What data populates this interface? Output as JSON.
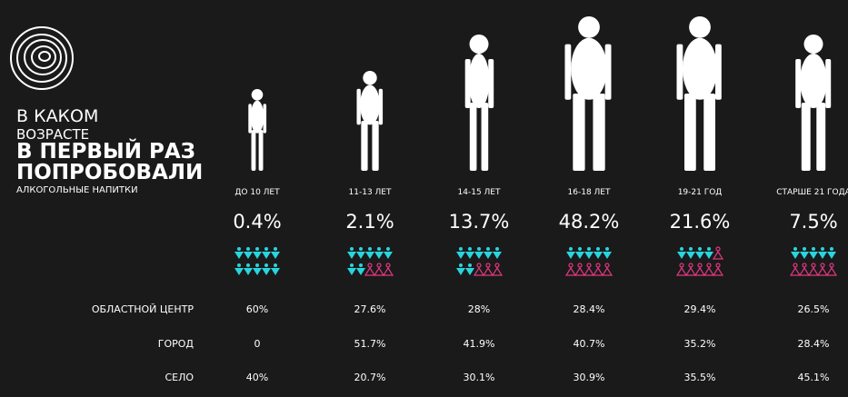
{
  "title_lines": [
    "В КАКОМ",
    "ВОЗРАСТЕ",
    "В ПЕРВЫЙ РАЗ",
    "ПОПРОБОВАЛИ",
    "АЛКОГОЛЬНЫЕ НАПИТКИ"
  ],
  "groups": [
    {
      "label": "ДО 10 ЛЕТ",
      "share": "0.4%",
      "icons": {
        "male": 10,
        "female": 0
      }
    },
    {
      "label": "11-13 ЛЕТ",
      "share": "2.1%",
      "icons": {
        "male": 7,
        "female": 3
      }
    },
    {
      "label": "14-15 ЛЕТ",
      "share": "13.7%",
      "icons": {
        "male": 7,
        "female": 3
      }
    },
    {
      "label": "16-18 ЛЕТ",
      "share": "48.2%",
      "icons": {
        "male": 5,
        "female": 5
      }
    },
    {
      "label": "19-21 ГОД",
      "share": "21.6%",
      "icons": {
        "male": 4,
        "female": 6
      }
    },
    {
      "label": "СТАРШЕ 21 ГОДА",
      "share": "7.5%",
      "icons": {
        "male": 5,
        "female": 5
      }
    }
  ],
  "table": {
    "rows": [
      {
        "label": "ОБЛАСТНОЙ ЦЕНТР",
        "values": [
          "60%",
          "27.6%",
          "28%",
          "28.4%",
          "29.4%",
          "26.5%"
        ]
      },
      {
        "label": "ГОРОД",
        "values": [
          "0",
          "51.7%",
          "41.9%",
          "40.7%",
          "35.2%",
          "28.4%"
        ]
      },
      {
        "label": "СЕЛО",
        "values": [
          "40%",
          "20.7%",
          "30.1%",
          "30.9%",
          "35.5%",
          "45.1%"
        ]
      }
    ]
  }
}
